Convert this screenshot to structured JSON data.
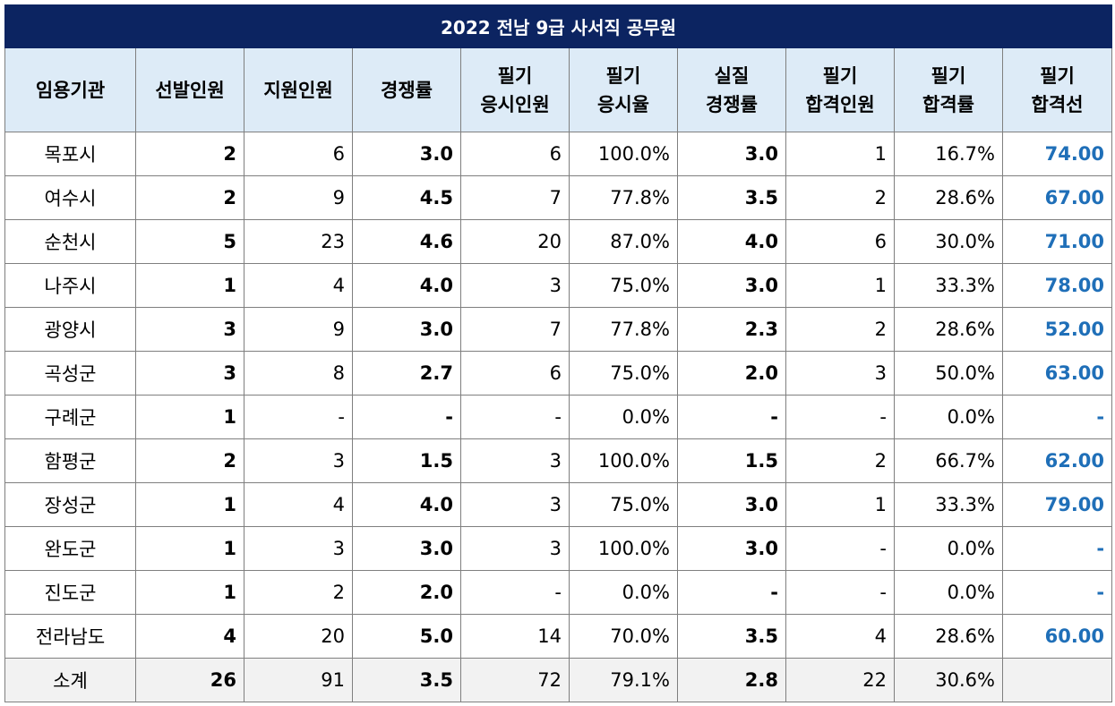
{
  "title": "2022 전남 9급 사서직  공무원",
  "headers": [
    [
      "임용기관"
    ],
    [
      "선발인원"
    ],
    [
      "지원인원"
    ],
    [
      "경쟁률"
    ],
    [
      "필기",
      "응시인원"
    ],
    [
      "필기",
      "응시율"
    ],
    [
      "실질",
      "경쟁률"
    ],
    [
      "필기",
      "합격인원"
    ],
    [
      "필기",
      "합격률"
    ],
    [
      "필기",
      "합격선"
    ]
  ],
  "rows": [
    [
      "목포시",
      "2",
      "6",
      "3.0",
      "6",
      "100.0%",
      "3.0",
      "1",
      "16.7%",
      "74.00"
    ],
    [
      "여수시",
      "2",
      "9",
      "4.5",
      "7",
      "77.8%",
      "3.5",
      "2",
      "28.6%",
      "67.00"
    ],
    [
      "순천시",
      "5",
      "23",
      "4.6",
      "20",
      "87.0%",
      "4.0",
      "6",
      "30.0%",
      "71.00"
    ],
    [
      "나주시",
      "1",
      "4",
      "4.0",
      "3",
      "75.0%",
      "3.0",
      "1",
      "33.3%",
      "78.00"
    ],
    [
      "광양시",
      "3",
      "9",
      "3.0",
      "7",
      "77.8%",
      "2.3",
      "2",
      "28.6%",
      "52.00"
    ],
    [
      "곡성군",
      "3",
      "8",
      "2.7",
      "6",
      "75.0%",
      "2.0",
      "3",
      "50.0%",
      "63.00"
    ],
    [
      "구례군",
      "1",
      "-",
      "-",
      "-",
      "0.0%",
      "-",
      "-",
      "0.0%",
      "-"
    ],
    [
      "함평군",
      "2",
      "3",
      "1.5",
      "3",
      "100.0%",
      "1.5",
      "2",
      "66.7%",
      "62.00"
    ],
    [
      "장성군",
      "1",
      "4",
      "4.0",
      "3",
      "75.0%",
      "3.0",
      "1",
      "33.3%",
      "79.00"
    ],
    [
      "완도군",
      "1",
      "3",
      "3.0",
      "3",
      "100.0%",
      "3.0",
      "-",
      "0.0%",
      "-"
    ],
    [
      "진도군",
      "1",
      "2",
      "2.0",
      "-",
      "0.0%",
      "-",
      "-",
      "0.0%",
      "-"
    ],
    [
      "전라남도",
      "4",
      "20",
      "5.0",
      "14",
      "70.0%",
      "3.5",
      "4",
      "28.6%",
      "60.00"
    ]
  ],
  "total": [
    "소계",
    "26",
    "91",
    "3.5",
    "72",
    "79.1%",
    "2.8",
    "22",
    "30.6%",
    ""
  ],
  "colors": {
    "title_bg": "#0c2461",
    "header_bg": "#ddebf7",
    "cutoff_text": "#1f6fb8",
    "total_bg": "#f2f2f2"
  }
}
